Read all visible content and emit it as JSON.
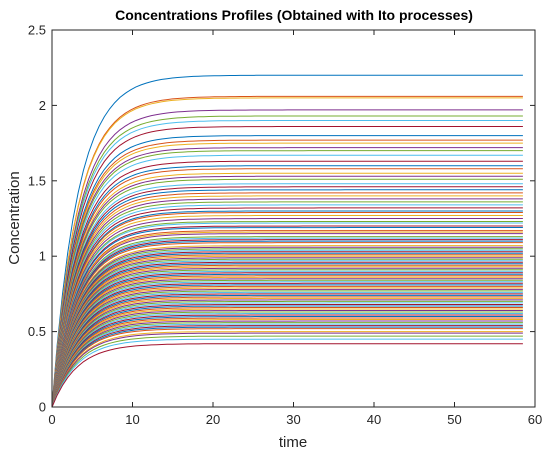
{
  "chart_data": {
    "type": "line",
    "title": "Concentrations Profiles (Obtained with Ito processes)",
    "xlabel": "time",
    "ylabel": "Concentration",
    "xlim": [
      0,
      60
    ],
    "ylim": [
      0,
      2.5
    ],
    "x_ticks": [
      "0",
      "10",
      "20",
      "30",
      "40",
      "50",
      "60"
    ],
    "y_ticks": [
      "0",
      "0.5",
      "1",
      "1.5",
      "2",
      "2.5"
    ],
    "x_end": 58.5,
    "rate_constant": 0.32,
    "grid": false,
    "legend": "none",
    "series_steady_states": [
      2.2,
      2.06,
      2.05,
      1.97,
      1.93,
      1.9,
      1.86,
      1.8,
      1.77,
      1.75,
      1.72,
      1.7,
      1.67,
      1.63,
      1.6,
      1.58,
      1.55,
      1.53,
      1.51,
      1.48,
      1.46,
      1.44,
      1.42,
      1.4,
      1.38,
      1.36,
      1.34,
      1.32,
      1.3,
      1.29,
      1.27,
      1.25,
      1.23,
      1.22,
      1.2,
      1.19,
      1.17,
      1.16,
      1.15,
      1.13,
      1.12,
      1.11,
      1.1,
      1.09,
      1.07,
      1.06,
      1.05,
      1.04,
      1.03,
      1.02,
      1.01,
      1.0,
      0.99,
      0.98,
      0.97,
      0.96,
      0.95,
      0.94,
      0.93,
      0.92,
      0.91,
      0.9,
      0.89,
      0.88,
      0.87,
      0.86,
      0.85,
      0.84,
      0.83,
      0.82,
      0.81,
      0.8,
      0.79,
      0.78,
      0.77,
      0.76,
      0.75,
      0.74,
      0.73,
      0.72,
      0.71,
      0.7,
      0.69,
      0.68,
      0.67,
      0.66,
      0.65,
      0.64,
      0.63,
      0.62,
      0.61,
      0.6,
      0.59,
      0.58,
      0.57,
      0.56,
      0.55,
      0.54,
      0.53,
      0.52,
      0.5,
      0.49,
      0.47,
      0.45,
      0.42
    ],
    "series_colors": [
      "#0072BD",
      "#D95319",
      "#EDB120",
      "#7E2F8E",
      "#77AC30",
      "#4DBEEE",
      "#A2142F"
    ]
  }
}
